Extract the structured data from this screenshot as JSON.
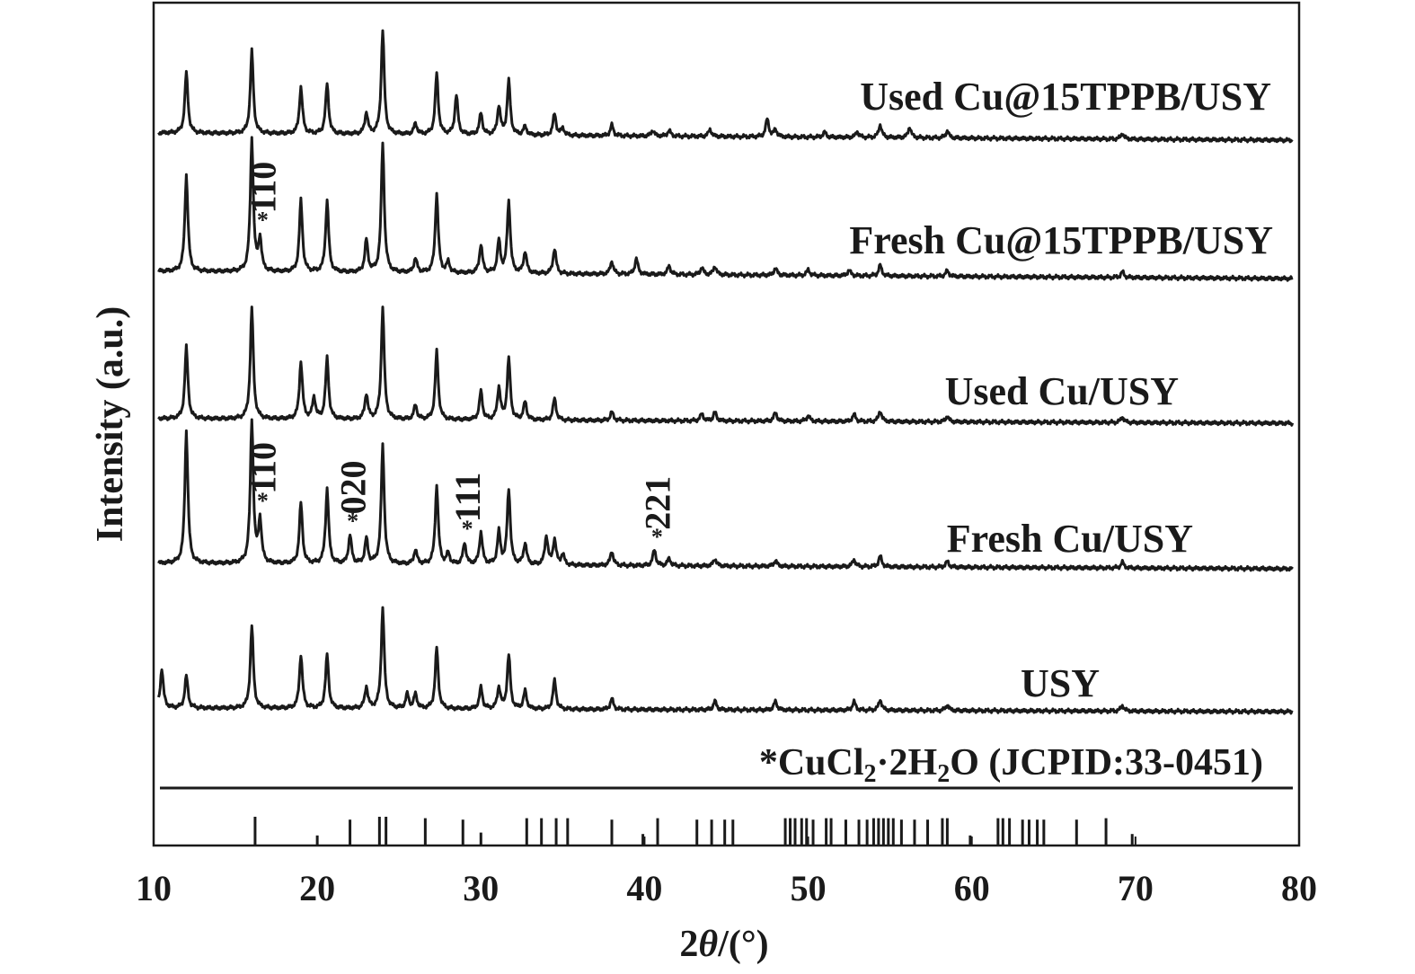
{
  "chart_data": {
    "type": "line",
    "xlabel_parts": {
      "pre": "2",
      "theta": "θ",
      "post": "/(°)"
    },
    "ylabel": "Intensity (a.u.)",
    "xlim": [
      10,
      80
    ],
    "xticks": [
      10,
      20,
      30,
      40,
      50,
      60,
      70,
      80
    ],
    "grid": false,
    "series": [
      {
        "name": "Used Cu@15TPPB/USY",
        "peaks": [
          [
            12.0,
            0.85
          ],
          [
            16.0,
            1.15
          ],
          [
            19.0,
            0.65
          ],
          [
            20.6,
            0.7
          ],
          [
            23.0,
            0.3
          ],
          [
            24.0,
            1.45
          ],
          [
            26.0,
            0.15
          ],
          [
            27.3,
            0.85
          ],
          [
            28.5,
            0.55
          ],
          [
            30.0,
            0.3
          ],
          [
            31.1,
            0.4
          ],
          [
            31.7,
            0.75
          ],
          [
            32.7,
            0.12
          ],
          [
            34.5,
            0.3
          ],
          [
            35.0,
            0.1
          ],
          [
            38.0,
            0.15
          ],
          [
            40.5,
            0.08
          ],
          [
            41.5,
            0.08
          ],
          [
            44.0,
            0.1
          ],
          [
            47.5,
            0.25
          ],
          [
            48.0,
            0.1
          ],
          [
            51.0,
            0.07
          ],
          [
            53.0,
            0.08
          ],
          [
            54.4,
            0.18
          ],
          [
            56.2,
            0.15
          ],
          [
            58.5,
            0.1
          ],
          [
            69.2,
            0.08
          ]
        ]
      },
      {
        "name": "Fresh Cu@15TPPB/USY",
        "peaks": [
          [
            12.0,
            1.35
          ],
          [
            16.0,
            1.85
          ],
          [
            16.5,
            0.45
          ],
          [
            19.0,
            1.0
          ],
          [
            20.6,
            1.0
          ],
          [
            23.0,
            0.45
          ],
          [
            24.0,
            1.8
          ],
          [
            26.0,
            0.2
          ],
          [
            27.3,
            1.1
          ],
          [
            28.0,
            0.15
          ],
          [
            30.0,
            0.4
          ],
          [
            31.1,
            0.45
          ],
          [
            31.7,
            1.0
          ],
          [
            32.7,
            0.3
          ],
          [
            34.5,
            0.35
          ],
          [
            38.0,
            0.18
          ],
          [
            39.5,
            0.22
          ],
          [
            41.5,
            0.12
          ],
          [
            43.5,
            0.1
          ],
          [
            44.3,
            0.12
          ],
          [
            48.0,
            0.1
          ],
          [
            50.0,
            0.08
          ],
          [
            52.5,
            0.08
          ],
          [
            54.4,
            0.15
          ],
          [
            58.5,
            0.08
          ],
          [
            69.2,
            0.08
          ]
        ]
      },
      {
        "name": "Used Cu/USY",
        "peaks": [
          [
            12.0,
            1.0
          ],
          [
            16.0,
            1.55
          ],
          [
            19.0,
            0.8
          ],
          [
            19.8,
            0.3
          ],
          [
            20.6,
            0.85
          ],
          [
            23.0,
            0.35
          ],
          [
            24.0,
            1.55
          ],
          [
            26.0,
            0.2
          ],
          [
            27.3,
            0.95
          ],
          [
            30.0,
            0.4
          ],
          [
            31.1,
            0.45
          ],
          [
            31.7,
            0.85
          ],
          [
            32.7,
            0.25
          ],
          [
            34.5,
            0.3
          ],
          [
            38.0,
            0.12
          ],
          [
            43.5,
            0.1
          ],
          [
            44.3,
            0.12
          ],
          [
            48.0,
            0.12
          ],
          [
            50.0,
            0.08
          ],
          [
            52.8,
            0.1
          ],
          [
            54.4,
            0.15
          ],
          [
            58.5,
            0.08
          ],
          [
            69.2,
            0.08
          ]
        ]
      },
      {
        "name": "Fresh Cu/USY",
        "peaks": [
          [
            12.0,
            1.85
          ],
          [
            16.0,
            2.0
          ],
          [
            16.5,
            0.6
          ],
          [
            19.0,
            0.85
          ],
          [
            20.6,
            1.05
          ],
          [
            22.0,
            0.4
          ],
          [
            23.0,
            0.35
          ],
          [
            24.0,
            1.65
          ],
          [
            26.0,
            0.2
          ],
          [
            27.3,
            1.1
          ],
          [
            28.0,
            0.15
          ],
          [
            29.0,
            0.3
          ],
          [
            30.0,
            0.45
          ],
          [
            31.1,
            0.45
          ],
          [
            31.7,
            1.05
          ],
          [
            32.7,
            0.3
          ],
          [
            34.0,
            0.4
          ],
          [
            34.5,
            0.35
          ],
          [
            35.0,
            0.15
          ],
          [
            38.0,
            0.2
          ],
          [
            40.6,
            0.22
          ],
          [
            41.5,
            0.1
          ],
          [
            44.3,
            0.1
          ],
          [
            48.0,
            0.08
          ],
          [
            52.8,
            0.1
          ],
          [
            54.4,
            0.15
          ],
          [
            58.5,
            0.08
          ],
          [
            69.2,
            0.08
          ]
        ]
      },
      {
        "name": "USY",
        "peaks": [
          [
            10.5,
            0.55
          ],
          [
            12.0,
            0.45
          ],
          [
            16.0,
            1.15
          ],
          [
            19.0,
            0.75
          ],
          [
            20.6,
            0.75
          ],
          [
            23.0,
            0.3
          ],
          [
            24.0,
            1.4
          ],
          [
            25.5,
            0.2
          ],
          [
            26.0,
            0.2
          ],
          [
            27.3,
            0.85
          ],
          [
            30.0,
            0.3
          ],
          [
            31.1,
            0.3
          ],
          [
            31.7,
            0.75
          ],
          [
            32.7,
            0.25
          ],
          [
            34.5,
            0.4
          ],
          [
            38.0,
            0.15
          ],
          [
            44.3,
            0.12
          ],
          [
            48.0,
            0.12
          ],
          [
            52.8,
            0.12
          ],
          [
            54.4,
            0.15
          ],
          [
            58.5,
            0.08
          ],
          [
            69.2,
            0.08
          ]
        ]
      }
    ],
    "peak_annotations": [
      {
        "series": "Fresh Cu@15TPPB/USY",
        "marker": "*",
        "label": "110",
        "x": 16.5
      },
      {
        "series": "Fresh Cu/USY",
        "marker": "*",
        "label": "110",
        "x": 16.5
      },
      {
        "series": "Fresh Cu/USY",
        "marker": "*",
        "label": "020",
        "x": 22.0
      },
      {
        "series": "Fresh Cu/USY",
        "marker": "*",
        "label": "111",
        "x": 29.0
      },
      {
        "series": "Fresh Cu/USY",
        "marker": "*",
        "label": "221",
        "x": 40.6
      }
    ],
    "reference_pattern": {
      "label_parts": {
        "a": "*CuCl",
        "b": "2",
        "c": "·2H",
        "d": "2",
        "e": "O (JCPID:33-0451)"
      },
      "positions": [
        16.2,
        20.0,
        22.0,
        23.8,
        24.2,
        26.6,
        28.9,
        30.0,
        32.8,
        33.7,
        34.6,
        35.3,
        38.0,
        39.9,
        40.8,
        43.2,
        44.1,
        44.9,
        45.4,
        48.6,
        48.9,
        49.2,
        49.6,
        49.9,
        50.3,
        51.1,
        51.4,
        52.3,
        53.1,
        53.6,
        54.0,
        54.3,
        54.6,
        54.9,
        55.2,
        55.7,
        56.5,
        57.3,
        58.2,
        58.5,
        59.9,
        61.6,
        61.9,
        62.3,
        63.1,
        63.5,
        64.0,
        64.4,
        66.4,
        68.2,
        69.8
      ],
      "heights": [
        1.0,
        0.35,
        0.9,
        1.0,
        1.0,
        0.95,
        0.9,
        0.45,
        0.95,
        0.95,
        0.95,
        0.95,
        0.9,
        0.4,
        0.95,
        0.9,
        0.9,
        0.9,
        0.9,
        0.95,
        0.95,
        0.95,
        0.95,
        0.95,
        0.9,
        0.95,
        0.95,
        0.9,
        0.9,
        0.9,
        0.95,
        0.95,
        0.95,
        0.95,
        0.95,
        0.9,
        0.9,
        0.9,
        0.95,
        0.95,
        0.35,
        0.95,
        0.95,
        0.95,
        0.9,
        0.9,
        0.9,
        0.9,
        0.9,
        0.95,
        0.4
      ]
    }
  }
}
